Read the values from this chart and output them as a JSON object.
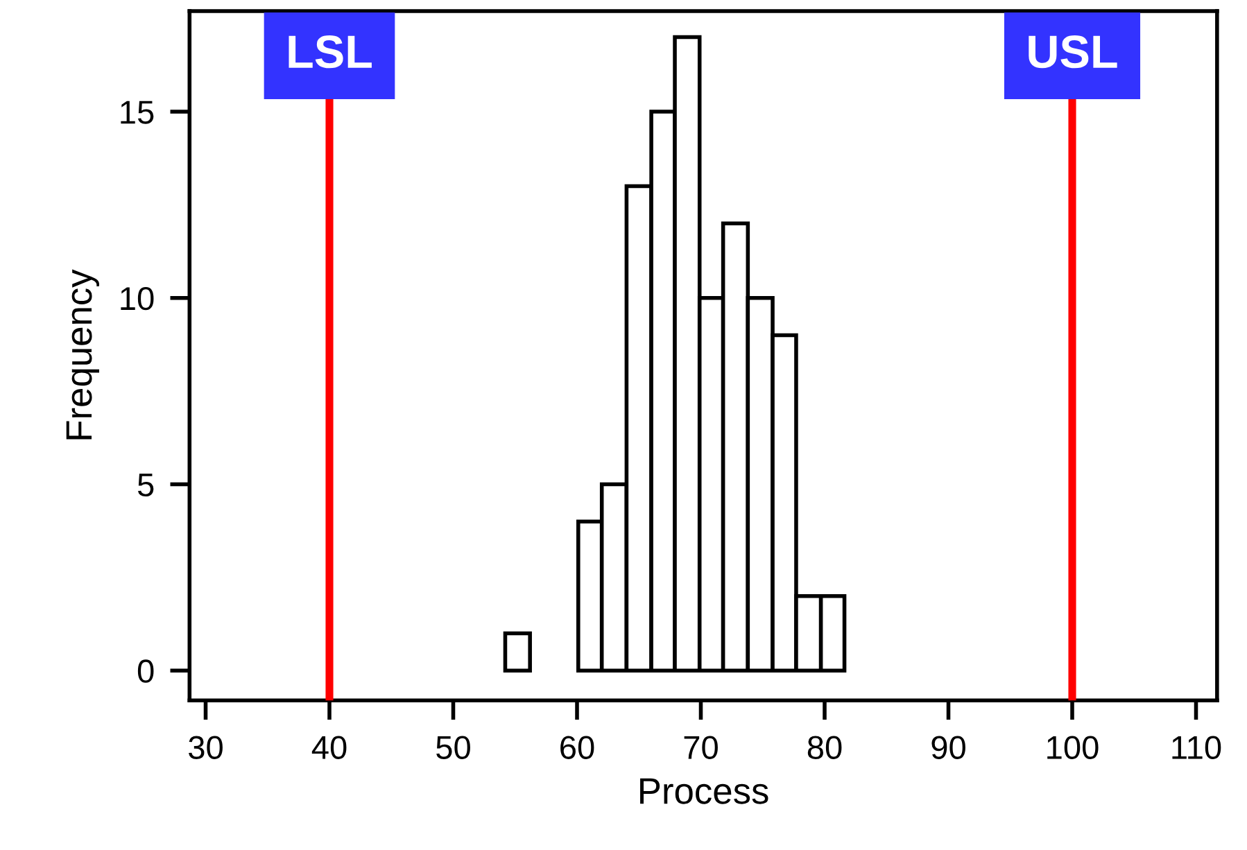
{
  "chart_data": {
    "type": "histogram",
    "xlabel": "Process",
    "ylabel": "Frequency",
    "bins": [
      54.2,
      56.2,
      60.1,
      62.0,
      64.0,
      66.0,
      67.9,
      69.9,
      71.8,
      73.8,
      75.8,
      77.7,
      79.7,
      81.6
    ],
    "values": [
      1,
      0,
      4,
      5,
      13,
      15,
      17,
      10,
      12,
      10,
      9,
      2,
      2
    ],
    "color": "#ffffff",
    "xlim": [
      28.7,
      111.7
    ],
    "xticks": [
      30,
      40,
      50,
      60,
      70,
      80,
      90,
      100,
      110
    ],
    "ylim": [
      -0.8,
      17.7
    ],
    "yticks": [
      0,
      5,
      10,
      15
    ],
    "ref_lines": [
      {
        "axis": "x",
        "value": 40,
        "label": "LSL",
        "color": "#ff0000"
      },
      {
        "axis": "x",
        "value": 100,
        "label": "USL",
        "color": "#ff0000"
      }
    ],
    "grid": false
  }
}
